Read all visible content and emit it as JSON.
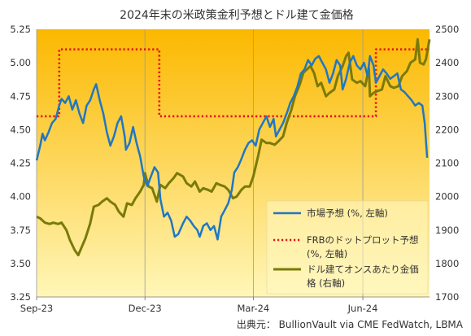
{
  "chart_data": {
    "type": "line",
    "title": "2024年末の米政策金利予想とドル建て金価格",
    "source": "出典元： BullionVault via  CME FedWatch, LBMA",
    "x_ticks": [
      "Sep-23",
      "Dec-23",
      "Mar-24",
      "Jun-24"
    ],
    "x_tick_dates": [
      "2023-09-01",
      "2023-12-01",
      "2024-03-01",
      "2024-06-01"
    ],
    "x_range": [
      "2023-09-01",
      "2024-07-27"
    ],
    "y_left": {
      "range": [
        3.25,
        5.25
      ],
      "ticks": [
        "3.25",
        "3.50",
        "3.75",
        "4.00",
        "4.25",
        "4.50",
        "4.75",
        "5.00",
        "5.25"
      ]
    },
    "y_right": {
      "range": [
        1700,
        2500
      ],
      "ticks": [
        "1700",
        "1800",
        "1900",
        "2000",
        "2100",
        "2200",
        "2300",
        "2400",
        "2500"
      ]
    },
    "legend_position": "bottom-right",
    "background_gradient": [
      "#fbb800",
      "#fff6b8"
    ],
    "series": [
      {
        "name": "市場予想 (%, 左軸)",
        "axis": "left",
        "color": "#1f77c4",
        "style": "solid",
        "points": [
          [
            "2023-09-01",
            4.27
          ],
          [
            "2023-09-04",
            4.38
          ],
          [
            "2023-09-06",
            4.47
          ],
          [
            "2023-09-08",
            4.42
          ],
          [
            "2023-09-11",
            4.48
          ],
          [
            "2023-09-14",
            4.55
          ],
          [
            "2023-09-17",
            4.58
          ],
          [
            "2023-09-20",
            4.68
          ],
          [
            "2023-09-22",
            4.73
          ],
          [
            "2023-09-25",
            4.7
          ],
          [
            "2023-09-28",
            4.75
          ],
          [
            "2023-10-01",
            4.65
          ],
          [
            "2023-10-04",
            4.72
          ],
          [
            "2023-10-07",
            4.62
          ],
          [
            "2023-10-10",
            4.55
          ],
          [
            "2023-10-13",
            4.68
          ],
          [
            "2023-10-16",
            4.72
          ],
          [
            "2023-10-19",
            4.8
          ],
          [
            "2023-10-21",
            4.84
          ],
          [
            "2023-10-24",
            4.72
          ],
          [
            "2023-10-27",
            4.62
          ],
          [
            "2023-10-30",
            4.48
          ],
          [
            "2023-11-02",
            4.38
          ],
          [
            "2023-11-05",
            4.45
          ],
          [
            "2023-11-08",
            4.55
          ],
          [
            "2023-11-11",
            4.6
          ],
          [
            "2023-11-14",
            4.45
          ],
          [
            "2023-11-15",
            4.35
          ],
          [
            "2023-11-18",
            4.4
          ],
          [
            "2023-11-21",
            4.52
          ],
          [
            "2023-11-24",
            4.4
          ],
          [
            "2023-11-27",
            4.3
          ],
          [
            "2023-11-30",
            4.15
          ],
          [
            "2023-12-03",
            4.08
          ],
          [
            "2023-12-06",
            4.15
          ],
          [
            "2023-12-09",
            4.22
          ],
          [
            "2023-12-12",
            4.18
          ],
          [
            "2023-12-14",
            3.98
          ],
          [
            "2023-12-17",
            3.85
          ],
          [
            "2023-12-20",
            3.88
          ],
          [
            "2023-12-23",
            3.82
          ],
          [
            "2023-12-26",
            3.7
          ],
          [
            "2023-12-29",
            3.72
          ],
          [
            "2024-01-02",
            3.8
          ],
          [
            "2024-01-05",
            3.85
          ],
          [
            "2024-01-08",
            3.82
          ],
          [
            "2024-01-11",
            3.78
          ],
          [
            "2024-01-14",
            3.75
          ],
          [
            "2024-01-16",
            3.7
          ],
          [
            "2024-01-19",
            3.78
          ],
          [
            "2024-01-22",
            3.8
          ],
          [
            "2024-01-25",
            3.75
          ],
          [
            "2024-01-28",
            3.78
          ],
          [
            "2024-01-31",
            3.68
          ],
          [
            "2024-02-03",
            3.85
          ],
          [
            "2024-02-06",
            3.9
          ],
          [
            "2024-02-09",
            3.95
          ],
          [
            "2024-02-12",
            4.05
          ],
          [
            "2024-02-14",
            4.18
          ],
          [
            "2024-02-17",
            4.22
          ],
          [
            "2024-02-20",
            4.28
          ],
          [
            "2024-02-23",
            4.35
          ],
          [
            "2024-02-26",
            4.4
          ],
          [
            "2024-02-29",
            4.42
          ],
          [
            "2024-03-03",
            4.38
          ],
          [
            "2024-03-06",
            4.5
          ],
          [
            "2024-03-09",
            4.55
          ],
          [
            "2024-03-12",
            4.6
          ],
          [
            "2024-03-15",
            4.52
          ],
          [
            "2024-03-18",
            4.58
          ],
          [
            "2024-03-20",
            4.45
          ],
          [
            "2024-03-23",
            4.5
          ],
          [
            "2024-03-26",
            4.55
          ],
          [
            "2024-03-29",
            4.62
          ],
          [
            "2024-04-01",
            4.7
          ],
          [
            "2024-04-04",
            4.75
          ],
          [
            "2024-04-07",
            4.82
          ],
          [
            "2024-04-10",
            4.92
          ],
          [
            "2024-04-13",
            4.95
          ],
          [
            "2024-04-16",
            5.02
          ],
          [
            "2024-04-19",
            4.98
          ],
          [
            "2024-04-22",
            5.03
          ],
          [
            "2024-04-25",
            5.05
          ],
          [
            "2024-04-28",
            5.0
          ],
          [
            "2024-05-01",
            4.95
          ],
          [
            "2024-05-04",
            4.85
          ],
          [
            "2024-05-07",
            4.92
          ],
          [
            "2024-05-10",
            5.02
          ],
          [
            "2024-05-13",
            4.98
          ],
          [
            "2024-05-15",
            4.8
          ],
          [
            "2024-05-18",
            4.88
          ],
          [
            "2024-05-21",
            5.0
          ],
          [
            "2024-05-24",
            5.05
          ],
          [
            "2024-05-27",
            4.98
          ],
          [
            "2024-05-30",
            4.95
          ],
          [
            "2024-06-02",
            5.0
          ],
          [
            "2024-06-05",
            4.9
          ],
          [
            "2024-06-07",
            5.05
          ],
          [
            "2024-06-10",
            4.98
          ],
          [
            "2024-06-12",
            4.85
          ],
          [
            "2024-06-15",
            4.9
          ],
          [
            "2024-06-18",
            4.95
          ],
          [
            "2024-06-21",
            4.92
          ],
          [
            "2024-06-24",
            4.88
          ],
          [
            "2024-06-27",
            4.9
          ],
          [
            "2024-06-30",
            4.92
          ],
          [
            "2024-07-03",
            4.8
          ],
          [
            "2024-07-06",
            4.78
          ],
          [
            "2024-07-09",
            4.75
          ],
          [
            "2024-07-12",
            4.72
          ],
          [
            "2024-07-15",
            4.68
          ],
          [
            "2024-07-18",
            4.7
          ],
          [
            "2024-07-21",
            4.68
          ],
          [
            "2024-07-23",
            4.55
          ],
          [
            "2024-07-25",
            4.29
          ]
        ]
      },
      {
        "name": "FRBのドットプロット予想 (%, 左軸)",
        "axis": "left",
        "color": "#e8121a",
        "style": "dotted",
        "points": [
          [
            "2023-09-01",
            4.6
          ],
          [
            "2023-09-20",
            4.6
          ],
          [
            "2023-09-20",
            5.1
          ],
          [
            "2023-12-13",
            5.1
          ],
          [
            "2023-12-13",
            4.6
          ],
          [
            "2024-03-20",
            4.6
          ],
          [
            "2024-03-20",
            4.6
          ],
          [
            "2024-06-12",
            4.6
          ],
          [
            "2024-06-12",
            5.1
          ],
          [
            "2024-07-27",
            5.1
          ]
        ]
      },
      {
        "name": "ドル建てオンスあたり金価格 (右軸)",
        "axis": "right",
        "color": "#7a7a0a",
        "style": "solid",
        "points": [
          [
            "2023-09-01",
            1940
          ],
          [
            "2023-09-04",
            1935
          ],
          [
            "2023-09-08",
            1922
          ],
          [
            "2023-09-12",
            1918
          ],
          [
            "2023-09-15",
            1922
          ],
          [
            "2023-09-19",
            1918
          ],
          [
            "2023-09-22",
            1922
          ],
          [
            "2023-09-26",
            1900
          ],
          [
            "2023-09-29",
            1870
          ],
          [
            "2023-10-03",
            1840
          ],
          [
            "2023-10-06",
            1825
          ],
          [
            "2023-10-09",
            1850
          ],
          [
            "2023-10-12",
            1875
          ],
          [
            "2023-10-16",
            1920
          ],
          [
            "2023-10-19",
            1970
          ],
          [
            "2023-10-23",
            1975
          ],
          [
            "2023-10-26",
            1985
          ],
          [
            "2023-10-30",
            1995
          ],
          [
            "2023-11-02",
            1985
          ],
          [
            "2023-11-06",
            1975
          ],
          [
            "2023-11-09",
            1955
          ],
          [
            "2023-11-13",
            1940
          ],
          [
            "2023-11-16",
            1980
          ],
          [
            "2023-11-20",
            1975
          ],
          [
            "2023-11-23",
            1995
          ],
          [
            "2023-11-27",
            2015
          ],
          [
            "2023-11-30",
            2035
          ],
          [
            "2023-12-01",
            2070
          ],
          [
            "2023-12-04",
            2030
          ],
          [
            "2023-12-07",
            2025
          ],
          [
            "2023-12-11",
            1985
          ],
          [
            "2023-12-14",
            2035
          ],
          [
            "2023-12-18",
            2025
          ],
          [
            "2023-12-21",
            2040
          ],
          [
            "2023-12-25",
            2055
          ],
          [
            "2023-12-28",
            2070
          ],
          [
            "2024-01-02",
            2060
          ],
          [
            "2024-01-05",
            2040
          ],
          [
            "2024-01-09",
            2030
          ],
          [
            "2024-01-12",
            2045
          ],
          [
            "2024-01-16",
            2015
          ],
          [
            "2024-01-19",
            2025
          ],
          [
            "2024-01-23",
            2020
          ],
          [
            "2024-01-26",
            2015
          ],
          [
            "2024-01-30",
            2040
          ],
          [
            "2024-02-02",
            2035
          ],
          [
            "2024-02-06",
            2030
          ],
          [
            "2024-02-09",
            2020
          ],
          [
            "2024-02-13",
            1995
          ],
          [
            "2024-02-16",
            2000
          ],
          [
            "2024-02-20",
            2020
          ],
          [
            "2024-02-23",
            2030
          ],
          [
            "2024-02-27",
            2030
          ],
          [
            "2024-03-01",
            2060
          ],
          [
            "2024-03-05",
            2120
          ],
          [
            "2024-03-08",
            2170
          ],
          [
            "2024-03-12",
            2160
          ],
          [
            "2024-03-15",
            2160
          ],
          [
            "2024-03-19",
            2155
          ],
          [
            "2024-03-22",
            2165
          ],
          [
            "2024-03-26",
            2180
          ],
          [
            "2024-03-29",
            2220
          ],
          [
            "2024-04-02",
            2260
          ],
          [
            "2024-04-05",
            2300
          ],
          [
            "2024-04-09",
            2335
          ],
          [
            "2024-04-12",
            2370
          ],
          [
            "2024-04-15",
            2380
          ],
          [
            "2024-04-18",
            2390
          ],
          [
            "2024-04-21",
            2370
          ],
          [
            "2024-04-24",
            2330
          ],
          [
            "2024-04-27",
            2340
          ],
          [
            "2024-05-01",
            2300
          ],
          [
            "2024-05-04",
            2310
          ],
          [
            "2024-05-08",
            2320
          ],
          [
            "2024-05-11",
            2360
          ],
          [
            "2024-05-15",
            2390
          ],
          [
            "2024-05-18",
            2420
          ],
          [
            "2024-05-20",
            2430
          ],
          [
            "2024-05-23",
            2350
          ],
          [
            "2024-05-27",
            2340
          ],
          [
            "2024-05-30",
            2345
          ],
          [
            "2024-06-03",
            2330
          ],
          [
            "2024-06-06",
            2385
          ],
          [
            "2024-06-07",
            2300
          ],
          [
            "2024-06-10",
            2310
          ],
          [
            "2024-06-13",
            2315
          ],
          [
            "2024-06-17",
            2320
          ],
          [
            "2024-06-20",
            2360
          ],
          [
            "2024-06-24",
            2330
          ],
          [
            "2024-06-27",
            2325
          ],
          [
            "2024-07-01",
            2330
          ],
          [
            "2024-07-04",
            2360
          ],
          [
            "2024-07-08",
            2375
          ],
          [
            "2024-07-11",
            2400
          ],
          [
            "2024-07-15",
            2410
          ],
          [
            "2024-07-17",
            2470
          ],
          [
            "2024-07-19",
            2400
          ],
          [
            "2024-07-22",
            2395
          ],
          [
            "2024-07-24",
            2410
          ],
          [
            "2024-07-27",
            2470
          ]
        ]
      }
    ]
  }
}
